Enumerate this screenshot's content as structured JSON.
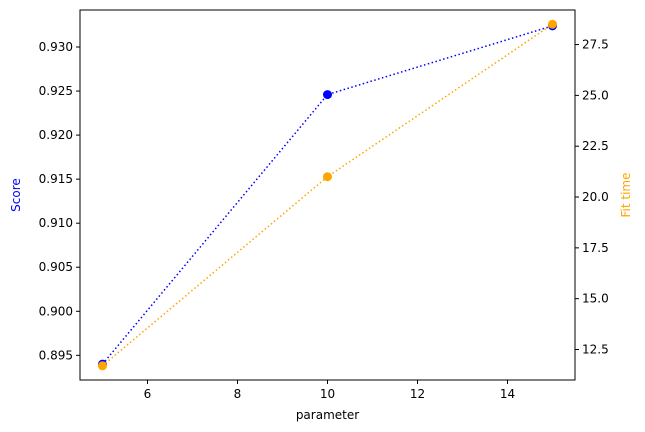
{
  "chart_data": {
    "type": "line",
    "xlabel": "parameter",
    "ylabel_left": "Score",
    "ylabel_right": "Fit time",
    "xlim": [
      4.5,
      15.5
    ],
    "ylim_left": [
      0.8922,
      0.9342
    ],
    "ylim_right": [
      11.0,
      29.2
    ],
    "xticks": [
      6,
      8,
      10,
      12,
      14
    ],
    "yticks_left": [
      0.895,
      0.9,
      0.905,
      0.91,
      0.915,
      0.92,
      0.925,
      0.93
    ],
    "yticks_right": [
      12.5,
      15.0,
      17.5,
      20.0,
      22.5,
      25.0,
      27.5
    ],
    "grid": false,
    "x": [
      5,
      10,
      15
    ],
    "series": [
      {
        "axis": "left",
        "color": "#0000ff",
        "style": "dotted",
        "values": [
          0.894,
          0.9246,
          0.9324
        ]
      },
      {
        "axis": "right",
        "color": "#ffa500",
        "style": "dotted",
        "values": [
          11.7,
          21.0,
          28.5
        ]
      }
    ]
  },
  "colors": {
    "left_axis_label": "#0000ff",
    "right_axis_label": "#ffa500",
    "frame": "#000000"
  }
}
